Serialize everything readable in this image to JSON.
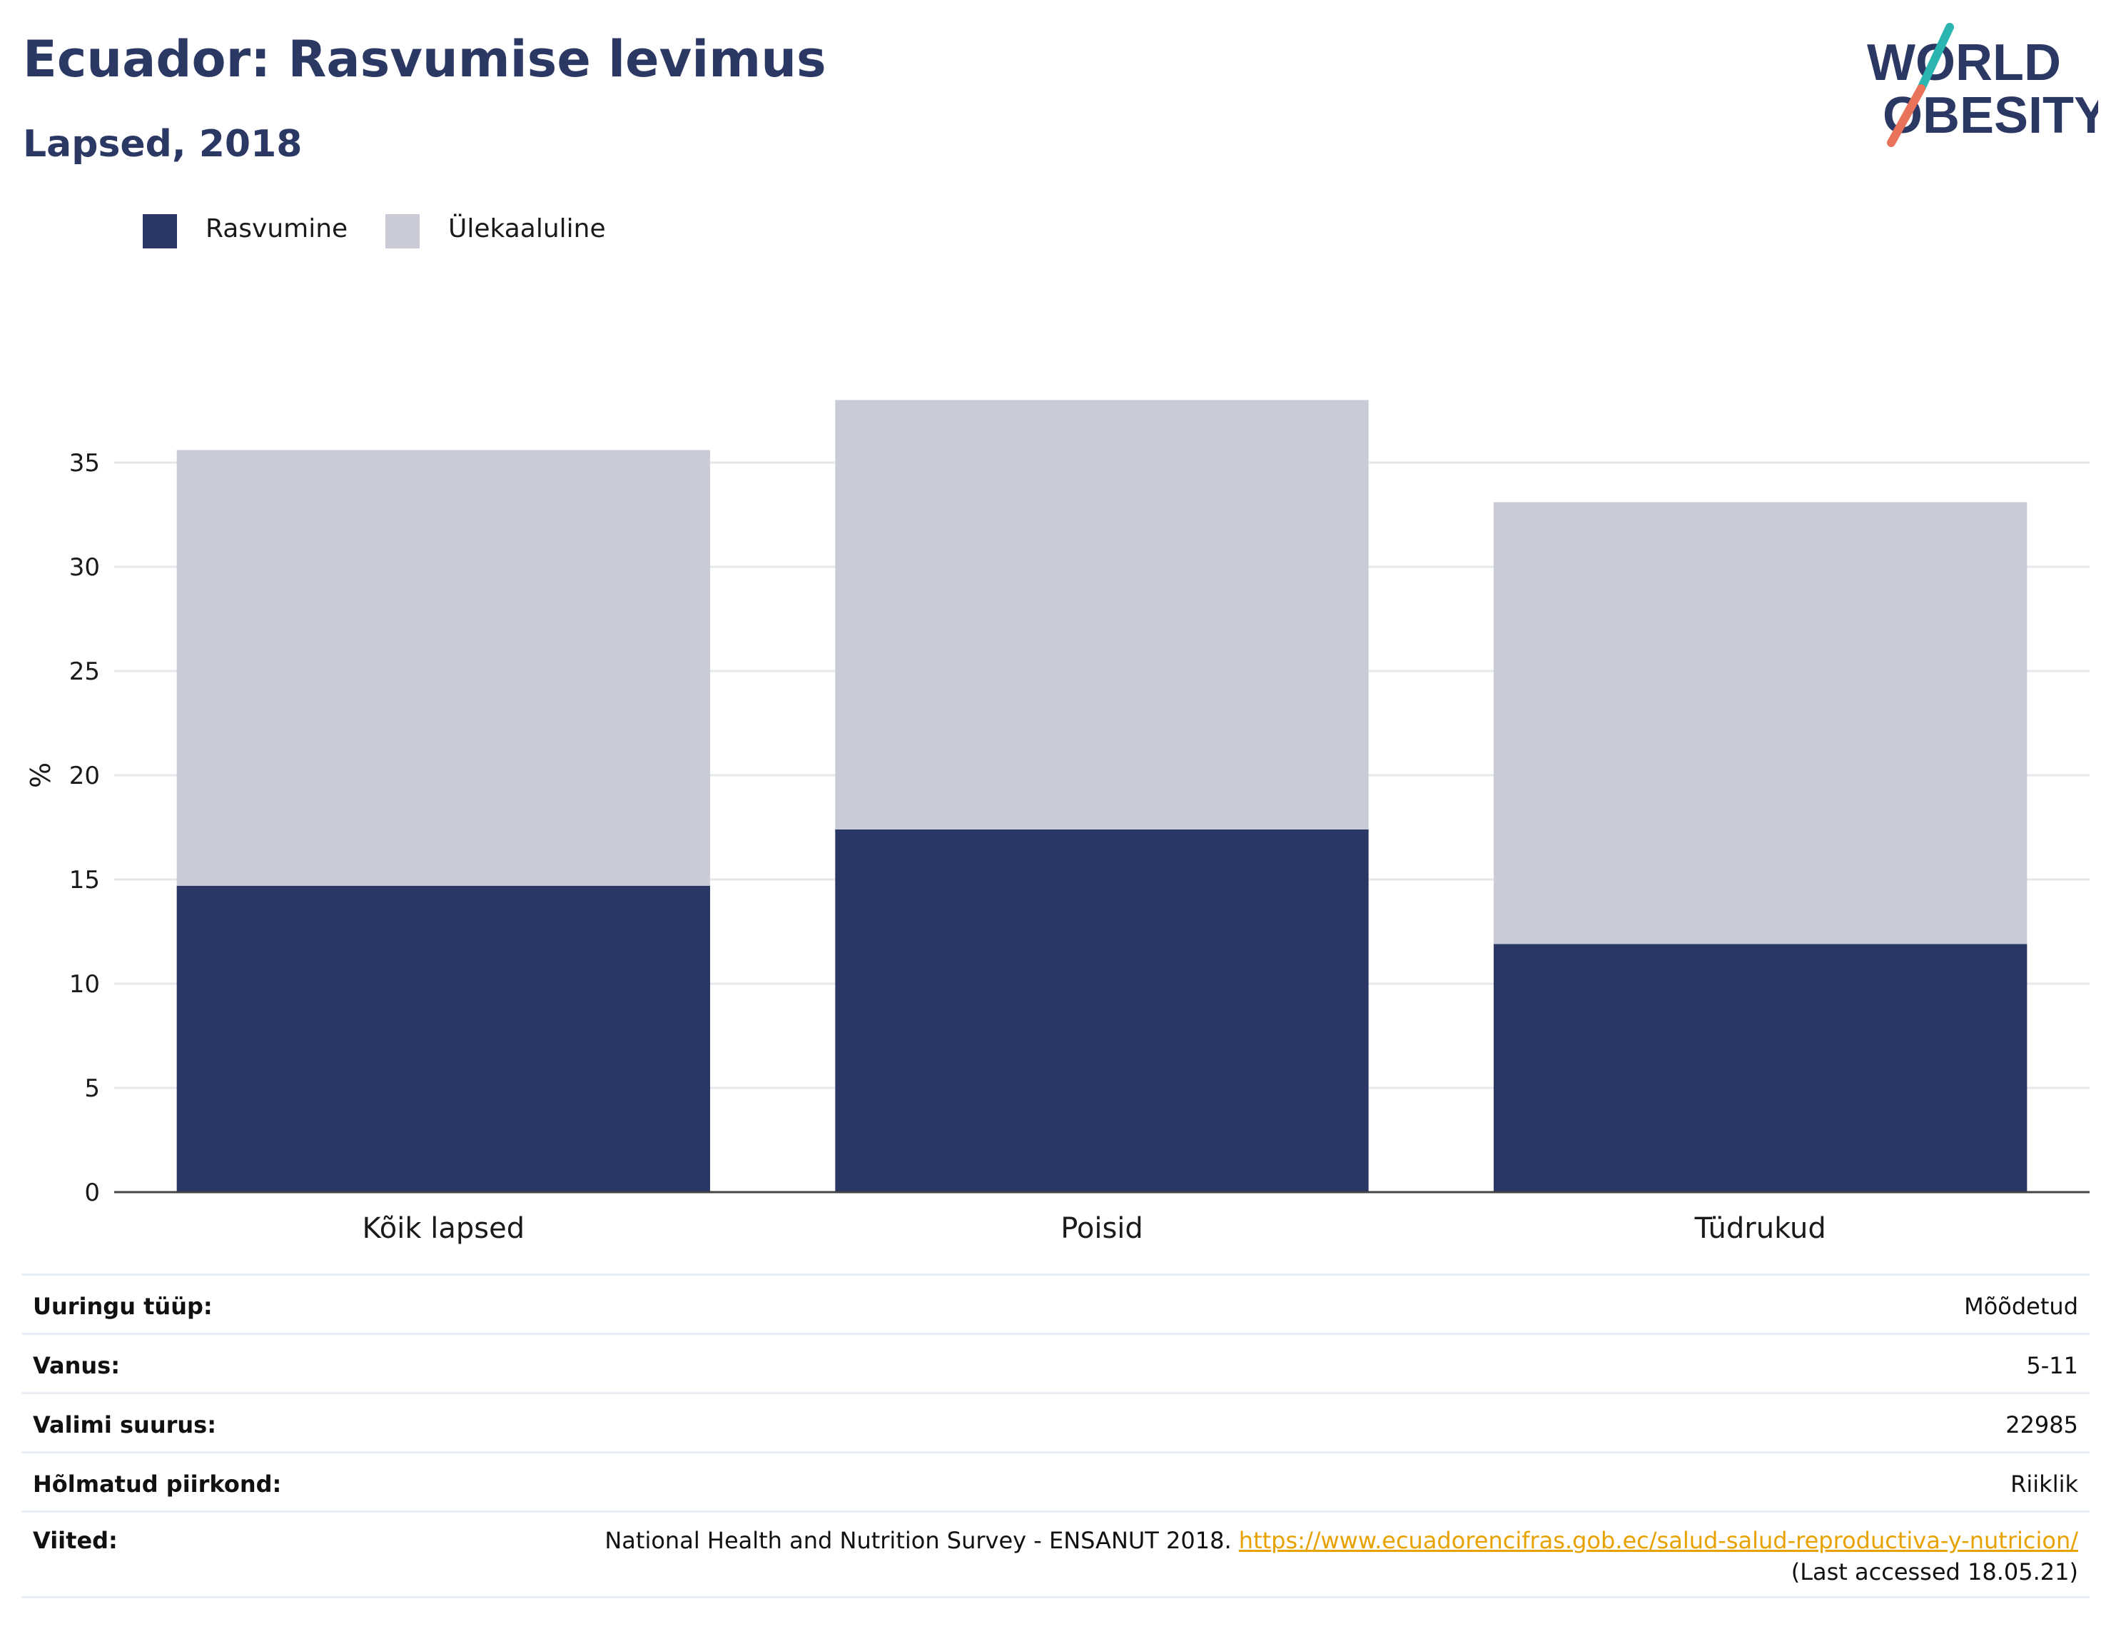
{
  "header": {
    "title": "Ecuador: Rasvumise levimus",
    "subtitle": "Lapsed, 2018"
  },
  "logo": {
    "line1": "WORLD",
    "line2": "OBESITY",
    "accent_teal": "#2bb5b0",
    "accent_coral": "#e8735a",
    "text_color": "#2c3864"
  },
  "legend": [
    {
      "label": "Rasvumine",
      "color": "#2a3764"
    },
    {
      "label": "Ülekaaluline",
      "color": "#c9cbd6"
    }
  ],
  "chart_data": {
    "type": "bar",
    "stacked": true,
    "categories": [
      "Kõik lapsed",
      "Poisid",
      "Tüdrukud"
    ],
    "series": [
      {
        "name": "Rasvumine",
        "color": "#2a3764",
        "values": [
          14.7,
          17.4,
          11.9
        ]
      },
      {
        "name": "Ülekaaluline",
        "color": "#c9cbd6",
        "values": [
          20.9,
          20.6,
          21.2
        ]
      }
    ],
    "ylabel": "%",
    "xlabel": "",
    "ylim": [
      0,
      38
    ],
    "yticks": [
      0,
      5,
      10,
      15,
      20,
      25,
      30,
      35
    ],
    "grid": true
  },
  "info": {
    "rows": [
      {
        "key": "Uuringu tüüp:",
        "value": "Mõõdetud"
      },
      {
        "key": "Vanus:",
        "value": "5-11"
      },
      {
        "key": "Valimi suurus:",
        "value": "22985"
      },
      {
        "key": "Hõlmatud piirkond:",
        "value": "Riiklik"
      }
    ],
    "reference": {
      "key": "Viited:",
      "text": "National Health and Nutrition Survey - ENSANUT 2018.",
      "link": "https://www.ecuadorencifras.gob.ec/salud-salud-reproductiva-y-nutricion/",
      "accessed": "(Last accessed 18.05.21)"
    }
  }
}
